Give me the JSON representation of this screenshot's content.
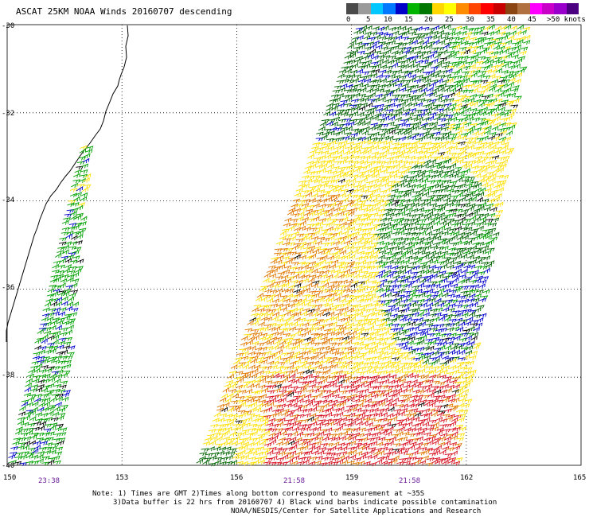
{
  "title": "ASCAT 25KM NOAA Winds 20160707 descending",
  "colorbar": {
    "colors": [
      "#4a4a4a",
      "#9a9a9a",
      "#00c8ff",
      "#0078ff",
      "#0000c8",
      "#00b400",
      "#007800",
      "#ffd700",
      "#ffff00",
      "#ff8c00",
      "#ff4500",
      "#ff0000",
      "#c80000",
      "#8b4513",
      "#b07040",
      "#ff00ff",
      "#c800c8",
      "#9900cc",
      "#4b0082"
    ],
    "labels": [
      "0",
      "5",
      "10",
      "15",
      "20",
      "25",
      "30",
      "35",
      "40",
      "45",
      ">50 knots"
    ]
  },
  "axes": {
    "lat_labels": [
      "-30",
      "-32",
      "-34",
      "-36",
      "-38",
      "-40"
    ],
    "lon_labels": [
      "150",
      "153",
      "156",
      "159",
      "162",
      "165"
    ],
    "lat_range": [
      -40,
      -30
    ],
    "lon_range": [
      150,
      165
    ],
    "grid": "dotted"
  },
  "times": [
    "23:38",
    "21:58",
    "21:58"
  ],
  "notes": {
    "line1": "Note: 1) Times are GMT 2)Times along bottom correspond to measurement at ~35S",
    "line2": "3)Data buffer is 22 hrs from 20160707 4) Black wind barbs indicate possible contamination",
    "line3": "NOAA/NESDIS/Center for Satellite Applications and Research"
  },
  "legend_colors": {
    "green_dark": "#006400",
    "green": "#00a000",
    "blue": "#0000cd",
    "yellow": "#ffe000",
    "orange": "#e07800",
    "red": "#d81020",
    "black": "#000000"
  }
}
